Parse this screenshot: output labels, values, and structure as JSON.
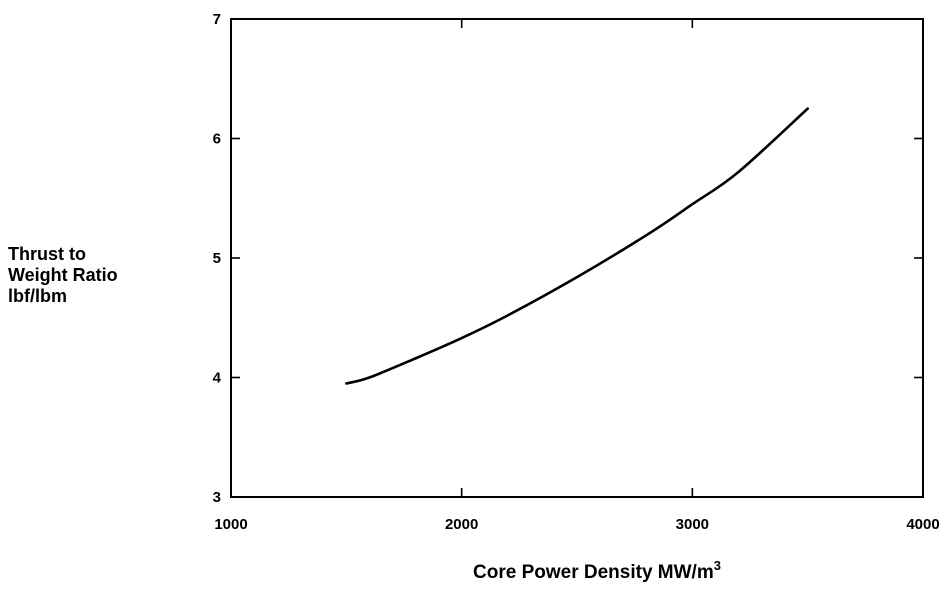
{
  "chart_data": {
    "type": "line",
    "title": "",
    "xlabel": "Core Power Density MW/m",
    "xlabel_sup": "3",
    "ylabel_lines": [
      "Thrust to",
      "Weight Ratio",
      "lbf/lbm"
    ],
    "xlim": [
      1000,
      4000
    ],
    "ylim": [
      3,
      7
    ],
    "xticks": [
      1000,
      2000,
      3000,
      4000
    ],
    "yticks": [
      3,
      4,
      5,
      6,
      7
    ],
    "grid": false,
    "legend": "none",
    "series": [
      {
        "x": [
          1500,
          1600,
          1800,
          2000,
          2200,
          2500,
          2800,
          3000,
          3200,
          3500
        ],
        "y": [
          3.95,
          4.0,
          4.16,
          4.33,
          4.52,
          4.84,
          5.19,
          5.45,
          5.72,
          6.25
        ]
      }
    ]
  }
}
